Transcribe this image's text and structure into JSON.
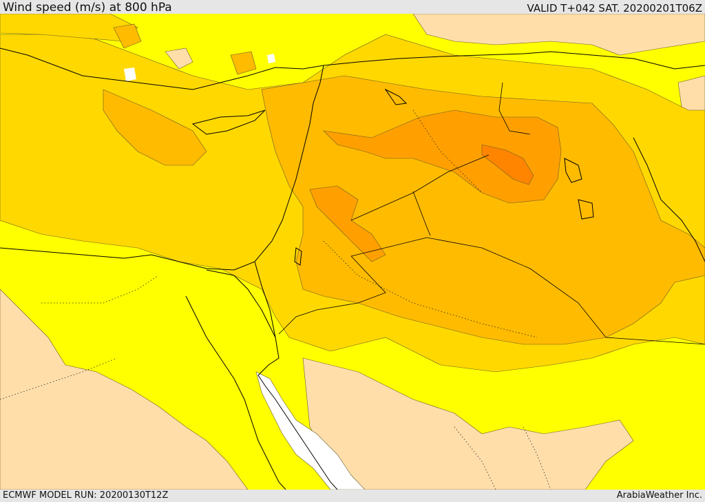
{
  "header": {
    "title": "Wind speed (m/s) at 800 hPa",
    "valid": "VALID T+042 SAT. 20200201T06Z"
  },
  "footer": {
    "model_run": "ECMWF MODEL RUN: 20200130T12Z",
    "credit": "ArabiaWeather Inc."
  },
  "map": {
    "field": "wind speed",
    "units": "m/s",
    "level": "800 hPa",
    "colors": {
      "calm": "#ffffff",
      "band_1": "#ffdeaa",
      "band_2": "#ffff00",
      "band_3": "#ffd800",
      "band_4": "#ffbb00",
      "band_5": "#ffa000",
      "band_6": "#ff8500",
      "coastline": "#000000",
      "contour": "#6a5a2a"
    }
  }
}
